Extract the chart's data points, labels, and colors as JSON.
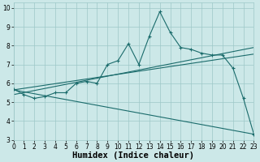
{
  "xlabel": "Humidex (Indice chaleur)",
  "bg_color": "#cce8e8",
  "grid_color": "#9ec8c8",
  "line_color": "#1a6b6b",
  "x_data": [
    0,
    1,
    2,
    3,
    4,
    5,
    6,
    7,
    8,
    9,
    10,
    11,
    12,
    13,
    14,
    15,
    16,
    17,
    18,
    19,
    20,
    21,
    22,
    23
  ],
  "y_data": [
    5.7,
    5.4,
    5.2,
    5.3,
    5.5,
    5.5,
    6.0,
    6.1,
    6.0,
    7.0,
    7.2,
    8.1,
    7.0,
    8.5,
    9.8,
    8.7,
    7.9,
    7.8,
    7.6,
    7.5,
    7.5,
    6.8,
    5.2,
    3.3
  ],
  "line1_x": [
    0,
    23
  ],
  "line1_y": [
    5.65,
    7.55
  ],
  "line2_x": [
    0,
    23
  ],
  "line2_y": [
    5.65,
    3.3
  ],
  "line3_x": [
    0,
    23
  ],
  "line3_y": [
    5.4,
    7.9
  ],
  "xlim": [
    0,
    23
  ],
  "ylim": [
    3,
    10.3
  ],
  "yticks": [
    3,
    4,
    5,
    6,
    7,
    8,
    9,
    10
  ],
  "xticks": [
    0,
    1,
    2,
    3,
    4,
    5,
    6,
    7,
    8,
    9,
    10,
    11,
    12,
    13,
    14,
    15,
    16,
    17,
    18,
    19,
    20,
    21,
    22,
    23
  ],
  "tick_fontsize": 5.5,
  "xlabel_fontsize": 7.5
}
